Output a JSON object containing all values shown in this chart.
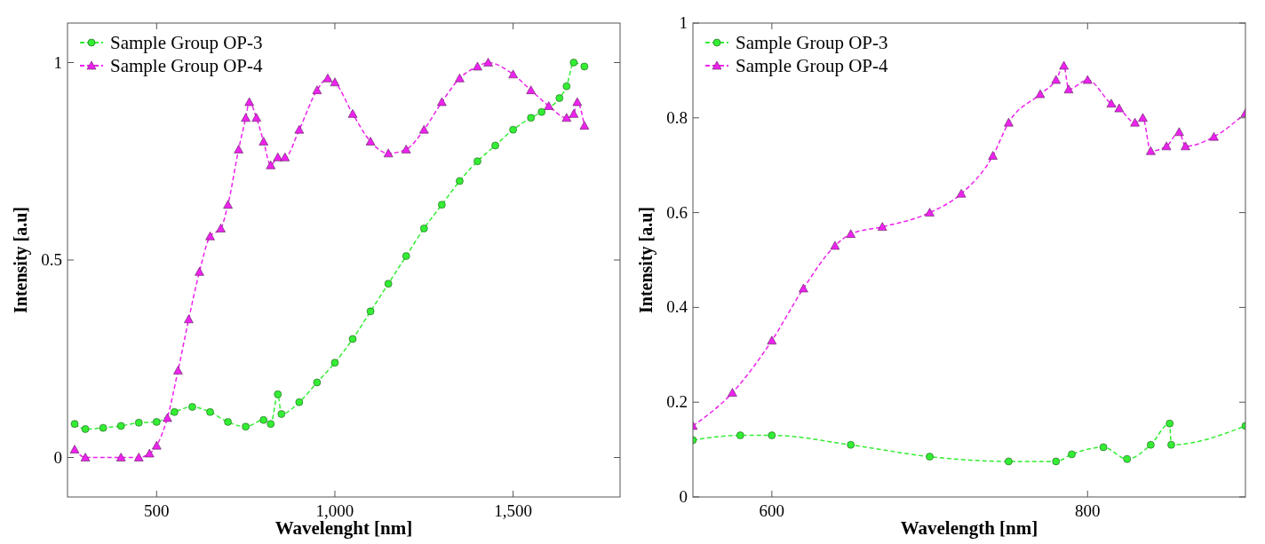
{
  "chart_data": [
    {
      "type": "line",
      "xlabel": "Wavelenght [nm]",
      "ylabel": "Intensity [a.u]",
      "xlim": [
        250,
        1800
      ],
      "ylim": [
        -0.1,
        1.1
      ],
      "xticks": [
        500,
        {
          "value": 1000,
          "label": "1,000"
        },
        {
          "value": 1500,
          "label": "1,500"
        }
      ],
      "yticks": [
        0,
        0.5,
        1
      ],
      "grid": false,
      "legend": "top left",
      "series": [
        {
          "name": "Sample Group OP-3",
          "color": "#33ee33",
          "marker": "circle",
          "line_style": "dashed",
          "x": [
            270,
            300,
            350,
            400,
            450,
            500,
            550,
            600,
            650,
            700,
            750,
            800,
            820,
            840,
            850,
            900,
            950,
            1000,
            1050,
            1100,
            1150,
            1200,
            1250,
            1300,
            1350,
            1400,
            1450,
            1500,
            1550,
            1580,
            1630,
            1650,
            1670,
            1700
          ],
          "values": [
            0.085,
            0.072,
            0.075,
            0.08,
            0.088,
            0.09,
            0.115,
            0.128,
            0.115,
            0.09,
            0.078,
            0.095,
            0.085,
            0.16,
            0.11,
            0.14,
            0.19,
            0.24,
            0.3,
            0.37,
            0.44,
            0.51,
            0.58,
            0.64,
            0.7,
            0.75,
            0.79,
            0.83,
            0.86,
            0.875,
            0.91,
            0.94,
            1.0,
            0.99
          ]
        },
        {
          "name": "Sample Group OP-4",
          "color": "#ee22ee",
          "marker": "triangle",
          "line_style": "dashed",
          "x": [
            270,
            300,
            400,
            450,
            480,
            500,
            530,
            560,
            590,
            620,
            650,
            680,
            700,
            730,
            750,
            760,
            780,
            800,
            820,
            840,
            860,
            900,
            950,
            980,
            1000,
            1050,
            1100,
            1150,
            1200,
            1250,
            1300,
            1350,
            1400,
            1430,
            1500,
            1550,
            1600,
            1650,
            1670,
            1680,
            1700
          ],
          "values": [
            0.02,
            0.0,
            0.0,
            0.0,
            0.01,
            0.03,
            0.1,
            0.22,
            0.35,
            0.47,
            0.56,
            0.58,
            0.64,
            0.78,
            0.86,
            0.9,
            0.86,
            0.8,
            0.74,
            0.76,
            0.76,
            0.83,
            0.93,
            0.96,
            0.95,
            0.87,
            0.8,
            0.77,
            0.78,
            0.83,
            0.9,
            0.96,
            0.99,
            1.0,
            0.97,
            0.93,
            0.89,
            0.86,
            0.87,
            0.9,
            0.84
          ]
        }
      ]
    },
    {
      "type": "line",
      "xlabel": "Wavelength [nm]",
      "ylabel": "Intensity [a.u]",
      "xlim": [
        550,
        900
      ],
      "ylim": [
        0,
        1
      ],
      "xticks": [
        600,
        800
      ],
      "yticks": [
        0,
        0.2,
        0.4,
        0.6,
        0.8,
        1
      ],
      "grid": false,
      "legend": "top left",
      "series": [
        {
          "name": "Sample Group OP-3",
          "color": "#33ee33",
          "marker": "circle",
          "line_style": "dashed",
          "x": [
            550,
            580,
            600,
            650,
            700,
            750,
            780,
            790,
            810,
            825,
            840,
            852,
            853,
            900
          ],
          "values": [
            0.12,
            0.13,
            0.13,
            0.11,
            0.085,
            0.075,
            0.075,
            0.09,
            0.105,
            0.08,
            0.11,
            0.155,
            0.11,
            0.15
          ]
        },
        {
          "name": "Sample Group OP-4",
          "color": "#ee22ee",
          "marker": "triangle",
          "line_style": "dashed",
          "x": [
            550,
            575,
            600,
            620,
            640,
            650,
            670,
            700,
            720,
            740,
            750,
            770,
            780,
            785,
            788,
            800,
            815,
            820,
            830,
            835,
            840,
            850,
            858,
            862,
            880,
            900
          ],
          "values": [
            0.15,
            0.22,
            0.33,
            0.44,
            0.53,
            0.555,
            0.57,
            0.6,
            0.64,
            0.72,
            0.79,
            0.85,
            0.88,
            0.91,
            0.86,
            0.88,
            0.83,
            0.82,
            0.79,
            0.8,
            0.73,
            0.74,
            0.77,
            0.74,
            0.76,
            0.81
          ]
        }
      ]
    }
  ]
}
